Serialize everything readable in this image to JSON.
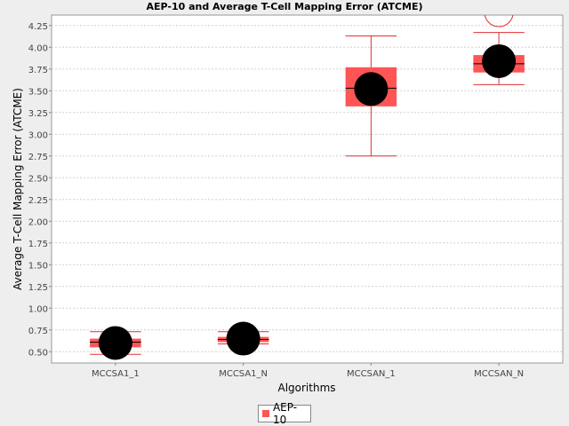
{
  "colors": {
    "box_fill": "#ff5555",
    "whisker": "#e03030",
    "mean_dot": "#000000",
    "outlier": "#e03030",
    "grid": "#d0d0d0",
    "plot_bg": "#ffffff"
  },
  "chart_data": {
    "type": "box",
    "title": "AEP-10 and Average T-Cell Mapping Error (ATCME)",
    "xlabel": "Algorithms",
    "ylabel": "Average T-Cell Mapping Error (ATCME)",
    "ylim": [
      0.37,
      4.37
    ],
    "yticks": [
      "0.50",
      "0.75",
      "1.00",
      "1.25",
      "1.50",
      "1.75",
      "2.00",
      "2.25",
      "2.50",
      "2.75",
      "3.00",
      "3.25",
      "3.50",
      "3.75",
      "4.00",
      "4.25"
    ],
    "categories": [
      "MCCSA1_1",
      "MCCSA1_N",
      "MCCSAN_1",
      "MCCSAN_N"
    ],
    "series": [
      {
        "name": "AEP-10",
        "boxes": [
          {
            "min": 0.47,
            "q1": 0.55,
            "median": 0.61,
            "q3": 0.65,
            "max": 0.73,
            "mean": 0.6,
            "outliers": []
          },
          {
            "min": 0.59,
            "q1": 0.61,
            "median": 0.64,
            "q3": 0.67,
            "max": 0.73,
            "mean": 0.65,
            "outliers": []
          },
          {
            "min": 2.75,
            "q1": 3.32,
            "median": 3.53,
            "q3": 3.77,
            "max": 4.13,
            "mean": 3.52,
            "outliers": []
          },
          {
            "min": 3.57,
            "q1": 3.71,
            "median": 3.81,
            "q3": 3.91,
            "max": 4.17,
            "mean": 3.84,
            "outliers": [
              4.4
            ]
          }
        ]
      }
    ],
    "grid": true,
    "legend_position": "bottom"
  }
}
